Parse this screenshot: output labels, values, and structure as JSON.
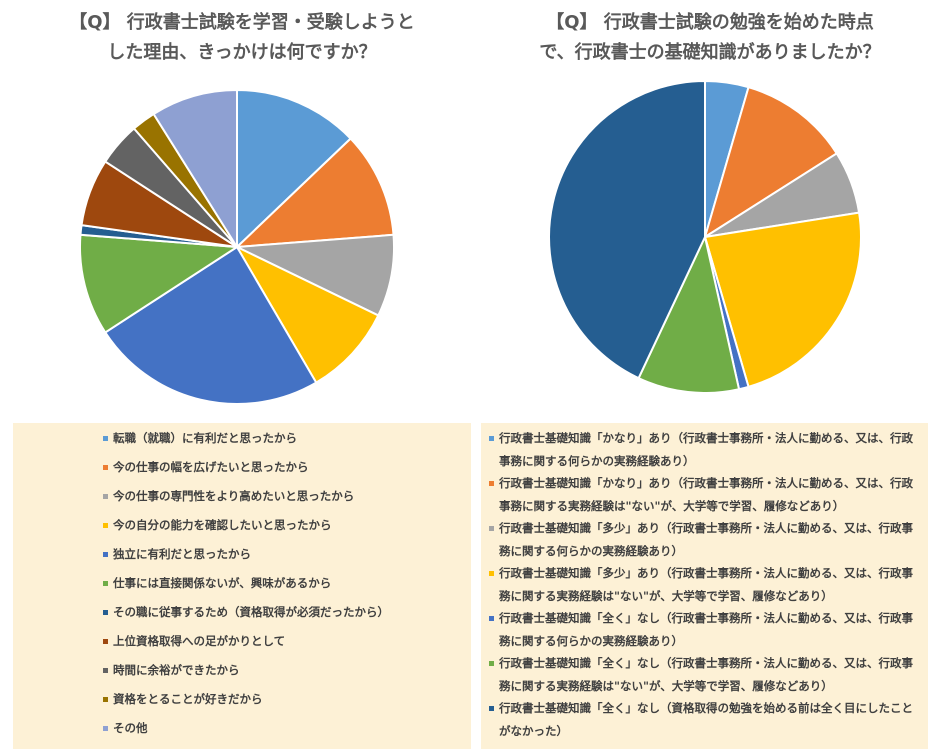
{
  "colors": {
    "blue": "#5b9bd5",
    "orange": "#ed7d31",
    "gray": "#a5a5a5",
    "gold": "#ffc000",
    "royal": "#4472c4",
    "green": "#70ad47",
    "navy": "#255e91",
    "brown": "#9e480e",
    "darkgray": "#636363",
    "olive": "#997300",
    "lavender": "#8ea0d2"
  },
  "chart_data": [
    {
      "type": "pie",
      "title_lines": [
        "【Q】 行政書士試験を学習・受験しようと",
        "した理由、きっかけは何ですか？"
      ],
      "categories": [
        "転職（就職）に有利だと思ったから",
        "今の仕事の幅を広げたいと思ったから",
        "今の仕事の専門性をより高めたいと思ったから",
        "今の自分の能力を確認したいと思ったから",
        "独立に有利だと思ったから",
        "仕事には直接関係ないが、興味があるから",
        "その職に従事するため（資格取得が必須だったから）",
        "上位資格取得への足がかりとして",
        "時間に余裕ができたから",
        "資格をとることが好きだから",
        "その他"
      ],
      "values": [
        13,
        11,
        8.5,
        9.5,
        24.5,
        10.5,
        1,
        7,
        4.5,
        2.5,
        9
      ],
      "colors": [
        "#5b9bd5",
        "#ed7d31",
        "#a5a5a5",
        "#ffc000",
        "#4472c4",
        "#70ad47",
        "#255e91",
        "#9e480e",
        "#636363",
        "#997300",
        "#8ea0d2"
      ],
      "legend_position": "bottom"
    },
    {
      "type": "pie",
      "title_lines": [
        "【Q】 行政書士試験の勉強を始めた時点",
        "で、行政書士の基礎知識がありましたか？"
      ],
      "categories": [
        "行政書士基礎知識「かなり」あり（行政書士事務所・法人に勤める、又は、行政事務に関する何らかの実務経験あり）",
        "行政書士基礎知識「かなり」あり（行政書士事務所・法人に勤める、又は、行政事務に関する実務経験は\"ない\"が、大学等で学習、履修などあり）",
        "行政書士基礎知識「多少」あり（行政書士事務所・法人に勤める、又は、行政事務に関する何らかの実務経験あり）",
        "行政書士基礎知識「多少」あり（行政書士事務所・法人に勤める、又は、行政事務に関する実務経験は\"ない\"が、大学等で学習、履修などあり）",
        "行政書士基礎知識「全く」なし（行政書士事務所・法人に勤める、又は、行政事務に関する何らかの実務経験あり）",
        "行政書士基礎知識「全く」なし（行政書士事務所・法人に勤める、又は、行政事務に関する実務経験は\"ない\"が、大学等で学習、履修などあり）",
        "行政書士基礎知識「全く」なし（資格取得の勉強を始める前は全く目にしたことがなかった）"
      ],
      "values": [
        4.5,
        11.5,
        6.5,
        23,
        1,
        10.5,
        43
      ],
      "colors": [
        "#5b9bd5",
        "#ed7d31",
        "#a5a5a5",
        "#ffc000",
        "#4472c4",
        "#70ad47",
        "#255e91"
      ],
      "legend_position": "bottom"
    }
  ]
}
